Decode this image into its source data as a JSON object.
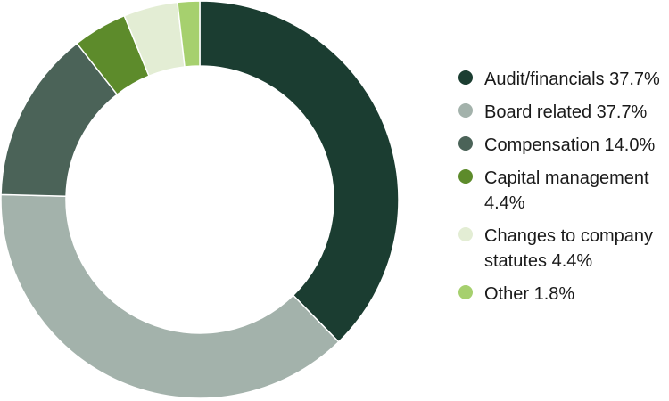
{
  "chart_data": {
    "type": "pie",
    "subtype": "donut",
    "title": "",
    "legend_position": "right",
    "slices": [
      {
        "label": "Audit/financials 37.7%",
        "value": 37.7,
        "color": "#1b3d31"
      },
      {
        "label": "Board related 37.7%",
        "value": 37.7,
        "color": "#a3b2ab"
      },
      {
        "label": "Compensation 14.0%",
        "value": 14.0,
        "color": "#4b6358"
      },
      {
        "label": "Capital management 4.4%",
        "value": 4.4,
        "color": "#5d8b2b"
      },
      {
        "label": "Changes to company statutes 4.4%",
        "value": 4.4,
        "color": "#e3edd4"
      },
      {
        "label": "Other 1.8%",
        "value": 1.8,
        "color": "#a6d06e"
      }
    ]
  }
}
